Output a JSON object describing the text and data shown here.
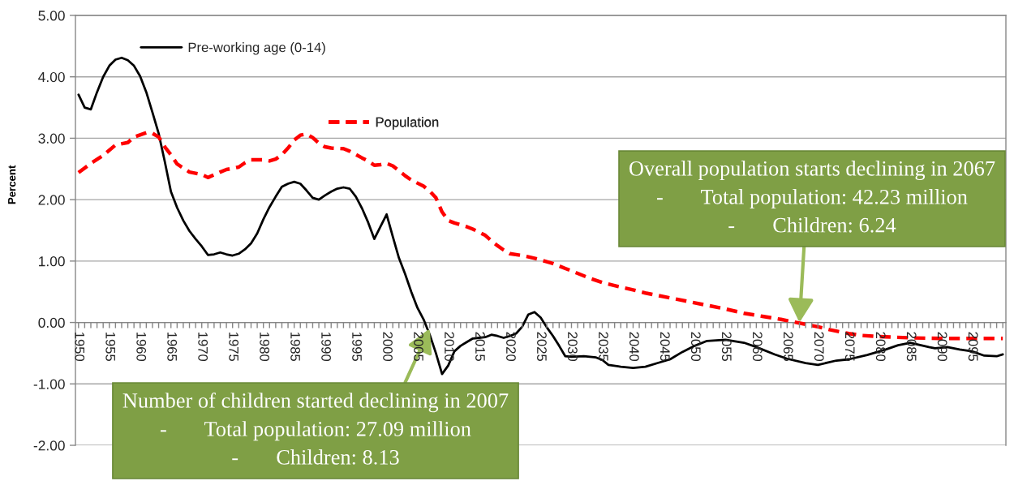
{
  "chart_data": {
    "type": "line",
    "ylabel": "Percent",
    "grid": "y",
    "legend": "top left",
    "xlim": [
      1949.5,
      2100.5
    ],
    "xticks": [
      1950,
      {
        "value": 1951,
        "label": null
      },
      {
        "value": 1952,
        "label": null
      },
      {
        "value": 1953,
        "label": null
      },
      {
        "value": 1954,
        "label": null
      },
      1955,
      {
        "value": 1956,
        "label": null
      },
      {
        "value": 1957,
        "label": null
      },
      {
        "value": 1958,
        "label": null
      },
      {
        "value": 1959,
        "label": null
      },
      1960,
      {
        "value": 1961,
        "label": null
      },
      {
        "value": 1962,
        "label": null
      },
      {
        "value": 1963,
        "label": null
      },
      {
        "value": 1964,
        "label": null
      },
      1965,
      {
        "value": 1966,
        "label": null
      },
      {
        "value": 1967,
        "label": null
      },
      {
        "value": 1968,
        "label": null
      },
      {
        "value": 1969,
        "label": null
      },
      1970,
      {
        "value": 1971,
        "label": null
      },
      {
        "value": 1972,
        "label": null
      },
      {
        "value": 1973,
        "label": null
      },
      {
        "value": 1974,
        "label": null
      },
      1975,
      {
        "value": 1976,
        "label": null
      },
      {
        "value": 1977,
        "label": null
      },
      {
        "value": 1978,
        "label": null
      },
      {
        "value": 1979,
        "label": null
      },
      1980,
      {
        "value": 1981,
        "label": null
      },
      {
        "value": 1982,
        "label": null
      },
      {
        "value": 1983,
        "label": null
      },
      {
        "value": 1984,
        "label": null
      },
      1985,
      {
        "value": 1986,
        "label": null
      },
      {
        "value": 1987,
        "label": null
      },
      {
        "value": 1988,
        "label": null
      },
      {
        "value": 1989,
        "label": null
      },
      1990,
      {
        "value": 1991,
        "label": null
      },
      {
        "value": 1992,
        "label": null
      },
      {
        "value": 1993,
        "label": null
      },
      {
        "value": 1994,
        "label": null
      },
      1995,
      {
        "value": 1996,
        "label": null
      },
      {
        "value": 1997,
        "label": null
      },
      {
        "value": 1998,
        "label": null
      },
      {
        "value": 1999,
        "label": null
      },
      2000,
      {
        "value": 2001,
        "label": null
      },
      {
        "value": 2002,
        "label": null
      },
      {
        "value": 2003,
        "label": null
      },
      {
        "value": 2004,
        "label": null
      },
      2005,
      {
        "value": 2006,
        "label": null
      },
      {
        "value": 2007,
        "label": null
      },
      {
        "value": 2008,
        "label": null
      },
      {
        "value": 2009,
        "label": null
      },
      2010,
      {
        "value": 2011,
        "label": null
      },
      {
        "value": 2012,
        "label": null
      },
      {
        "value": 2013,
        "label": null
      },
      {
        "value": 2014,
        "label": null
      },
      2015,
      {
        "value": 2016,
        "label": null
      },
      {
        "value": 2017,
        "label": null
      },
      {
        "value": 2018,
        "label": null
      },
      {
        "value": 2019,
        "label": null
      },
      2020,
      {
        "value": 2021,
        "label": null
      },
      {
        "value": 2022,
        "label": null
      },
      {
        "value": 2023,
        "label": null
      },
      {
        "value": 2024,
        "label": null
      },
      2025,
      {
        "value": 2026,
        "label": null
      },
      {
        "value": 2027,
        "label": null
      },
      {
        "value": 2028,
        "label": null
      },
      {
        "value": 2029,
        "label": null
      },
      2030,
      {
        "value": 2031,
        "label": null
      },
      {
        "value": 2032,
        "label": null
      },
      {
        "value": 2033,
        "label": null
      },
      {
        "value": 2034,
        "label": null
      },
      2035,
      {
        "value": 2036,
        "label": null
      },
      {
        "value": 2037,
        "label": null
      },
      {
        "value": 2038,
        "label": null
      },
      {
        "value": 2039,
        "label": null
      },
      2040,
      {
        "value": 2041,
        "label": null
      },
      {
        "value": 2042,
        "label": null
      },
      {
        "value": 2043,
        "label": null
      },
      {
        "value": 2044,
        "label": null
      },
      2045,
      {
        "value": 2046,
        "label": null
      },
      {
        "value": 2047,
        "label": null
      },
      {
        "value": 2048,
        "label": null
      },
      {
        "value": 2049,
        "label": null
      },
      2050,
      {
        "value": 2051,
        "label": null
      },
      {
        "value": 2052,
        "label": null
      },
      {
        "value": 2053,
        "label": null
      },
      {
        "value": 2054,
        "label": null
      },
      2055,
      {
        "value": 2056,
        "label": null
      },
      {
        "value": 2057,
        "label": null
      },
      {
        "value": 2058,
        "label": null
      },
      {
        "value": 2059,
        "label": null
      },
      2060,
      {
        "value": 2061,
        "label": null
      },
      {
        "value": 2062,
        "label": null
      },
      {
        "value": 2063,
        "label": null
      },
      {
        "value": 2064,
        "label": null
      },
      2065,
      {
        "value": 2066,
        "label": null
      },
      {
        "value": 2067,
        "label": null
      },
      {
        "value": 2068,
        "label": null
      },
      {
        "value": 2069,
        "label": null
      },
      2070,
      {
        "value": 2071,
        "label": null
      },
      {
        "value": 2072,
        "label": null
      },
      {
        "value": 2073,
        "label": null
      },
      {
        "value": 2074,
        "label": null
      },
      2075,
      {
        "value": 2076,
        "label": null
      },
      {
        "value": 2077,
        "label": null
      },
      {
        "value": 2078,
        "label": null
      },
      {
        "value": 2079,
        "label": null
      },
      2080,
      {
        "value": 2081,
        "label": null
      },
      {
        "value": 2082,
        "label": null
      },
      {
        "value": 2083,
        "label": null
      },
      {
        "value": 2084,
        "label": null
      },
      2085,
      {
        "value": 2086,
        "label": null
      },
      {
        "value": 2087,
        "label": null
      },
      {
        "value": 2088,
        "label": null
      },
      {
        "value": 2089,
        "label": null
      },
      2090,
      {
        "value": 2091,
        "label": null
      },
      {
        "value": 2092,
        "label": null
      },
      {
        "value": 2093,
        "label": null
      },
      {
        "value": 2094,
        "label": null
      },
      2095,
      {
        "value": 2096,
        "label": null
      },
      {
        "value": 2097,
        "label": null
      },
      {
        "value": 2098,
        "label": null
      },
      {
        "value": 2099,
        "label": null
      },
      {
        "value": 2100,
        "label": null
      }
    ],
    "ylim": [
      -2,
      5
    ],
    "yticks": [
      {
        "value": -2,
        "label": "-2.00"
      },
      {
        "value": -1,
        "label": "-1.00"
      },
      {
        "value": 0,
        "label": "0.00"
      },
      {
        "value": 1,
        "label": "1.00"
      },
      {
        "value": 2,
        "label": "2.00"
      },
      {
        "value": 3,
        "label": "3.00"
      },
      {
        "value": 4,
        "label": "4.00"
      },
      {
        "value": 5,
        "label": "5.00"
      }
    ],
    "series": [
      {
        "name": "Pre-working age (0-14)",
        "color": "#000000",
        "line_style": "solid",
        "x": [
          1950,
          1951,
          1952,
          1953,
          1954,
          1955,
          1956,
          1957,
          1958,
          1959,
          1960,
          1961,
          1962,
          1963,
          1964,
          1965,
          1966,
          1967,
          1968,
          1969,
          1970,
          1971,
          1972,
          1973,
          1974,
          1975,
          1976,
          1977,
          1978,
          1979,
          1980,
          1981,
          1982,
          1983,
          1984,
          1985,
          1986,
          1987,
          1988,
          1989,
          1990,
          1991,
          1992,
          1993,
          1994,
          1995,
          1996,
          1997,
          1998,
          1999,
          2000,
          2001,
          2002,
          2003,
          2004,
          2005,
          2006,
          2007,
          2008,
          2009,
          2010,
          2011,
          2012,
          2013,
          2014,
          2015,
          2016,
          2017,
          2018,
          2019,
          2020,
          2021,
          2022,
          2023,
          2024,
          2025,
          2026,
          2027,
          2028,
          2029,
          2030,
          2032,
          2034,
          2035,
          2036,
          2038,
          2040,
          2042,
          2044,
          2046,
          2048,
          2050,
          2052,
          2055,
          2058,
          2060,
          2063,
          2065,
          2068,
          2070,
          2073,
          2075,
          2078,
          2081,
          2083,
          2085,
          2088,
          2089,
          2091,
          2093,
          2095,
          2097,
          2099,
          2100
        ],
        "values": [
          3.71,
          3.5,
          3.47,
          3.75,
          4.0,
          4.18,
          4.28,
          4.31,
          4.27,
          4.18,
          4.01,
          3.75,
          3.42,
          3.08,
          2.62,
          2.13,
          1.87,
          1.66,
          1.49,
          1.36,
          1.24,
          1.1,
          1.11,
          1.14,
          1.11,
          1.09,
          1.12,
          1.19,
          1.29,
          1.45,
          1.68,
          1.88,
          2.05,
          2.21,
          2.26,
          2.29,
          2.26,
          2.15,
          2.03,
          2.0,
          2.07,
          2.13,
          2.18,
          2.2,
          2.18,
          2.05,
          1.86,
          1.63,
          1.36,
          1.56,
          1.76,
          1.4,
          1.05,
          0.79,
          0.5,
          0.24,
          0.05,
          -0.2,
          -0.5,
          -0.84,
          -0.7,
          -0.47,
          -0.38,
          -0.32,
          -0.26,
          -0.25,
          -0.24,
          -0.2,
          -0.22,
          -0.25,
          -0.22,
          -0.18,
          -0.07,
          0.13,
          0.17,
          0.08,
          -0.08,
          -0.22,
          -0.38,
          -0.55,
          -0.56,
          -0.55,
          -0.57,
          -0.61,
          -0.69,
          -0.72,
          -0.74,
          -0.72,
          -0.66,
          -0.6,
          -0.48,
          -0.38,
          -0.3,
          -0.28,
          -0.33,
          -0.4,
          -0.52,
          -0.59,
          -0.66,
          -0.69,
          -0.62,
          -0.6,
          -0.53,
          -0.44,
          -0.37,
          -0.33,
          -0.4,
          -0.42,
          -0.4,
          -0.44,
          -0.47,
          -0.54,
          -0.55,
          -0.52
        ]
      },
      {
        "name": "Population",
        "color": "#ff0000",
        "line_style": "dashed",
        "x": [
          1950,
          1952,
          1954,
          1956,
          1958,
          1959,
          1961,
          1962,
          1963,
          1964,
          1965,
          1966,
          1968,
          1970,
          1971,
          1973,
          1974,
          1975,
          1976,
          1977,
          1978,
          1980,
          1981,
          1982,
          1983,
          1984,
          1985,
          1986,
          1987,
          1988,
          1989,
          1990,
          1991,
          1993,
          1994,
          1996,
          1997,
          1998,
          1999,
          2000,
          2001,
          2002,
          2003,
          2004,
          2006,
          2007,
          2008,
          2009,
          2010,
          2011,
          2013,
          2014,
          2016,
          2017,
          2018,
          2019,
          2020,
          2022,
          2023,
          2025,
          2027,
          2029,
          2031,
          2033,
          2035,
          2037,
          2040,
          2042,
          2044,
          2046,
          2049,
          2052,
          2055,
          2058,
          2061,
          2064,
          2066,
          2068,
          2070,
          2072,
          2075,
          2077,
          2080,
          2085,
          2090,
          2095,
          2100
        ],
        "values": [
          2.44,
          2.59,
          2.72,
          2.89,
          2.93,
          3.02,
          3.09,
          3.08,
          3.02,
          2.86,
          2.73,
          2.58,
          2.45,
          2.41,
          2.36,
          2.45,
          2.49,
          2.51,
          2.53,
          2.6,
          2.65,
          2.65,
          2.63,
          2.66,
          2.73,
          2.84,
          2.97,
          3.05,
          3.07,
          3.01,
          2.92,
          2.86,
          2.84,
          2.83,
          2.79,
          2.68,
          2.63,
          2.56,
          2.57,
          2.59,
          2.55,
          2.47,
          2.39,
          2.32,
          2.22,
          2.14,
          2.03,
          1.8,
          1.66,
          1.62,
          1.56,
          1.52,
          1.42,
          1.33,
          1.25,
          1.18,
          1.12,
          1.09,
          1.07,
          1.02,
          0.96,
          0.88,
          0.8,
          0.72,
          0.65,
          0.6,
          0.53,
          0.48,
          0.44,
          0.4,
          0.34,
          0.28,
          0.22,
          0.15,
          0.1,
          0.05,
          0.01,
          -0.03,
          -0.07,
          -0.12,
          -0.18,
          -0.21,
          -0.23,
          -0.25,
          -0.26,
          -0.26,
          -0.26
        ]
      }
    ],
    "annotations": [
      {
        "text": "Number of children started declining in 2007\n-       Total population: 27.09 million\n-       Children: 8.13",
        "x": 2007,
        "y": -0.1
      },
      {
        "text": "Overall population starts declining in 2067\n-       Total population: 42.23 million\n-       Children: 6.24",
        "x": 2067,
        "y": 0
      }
    ]
  }
}
